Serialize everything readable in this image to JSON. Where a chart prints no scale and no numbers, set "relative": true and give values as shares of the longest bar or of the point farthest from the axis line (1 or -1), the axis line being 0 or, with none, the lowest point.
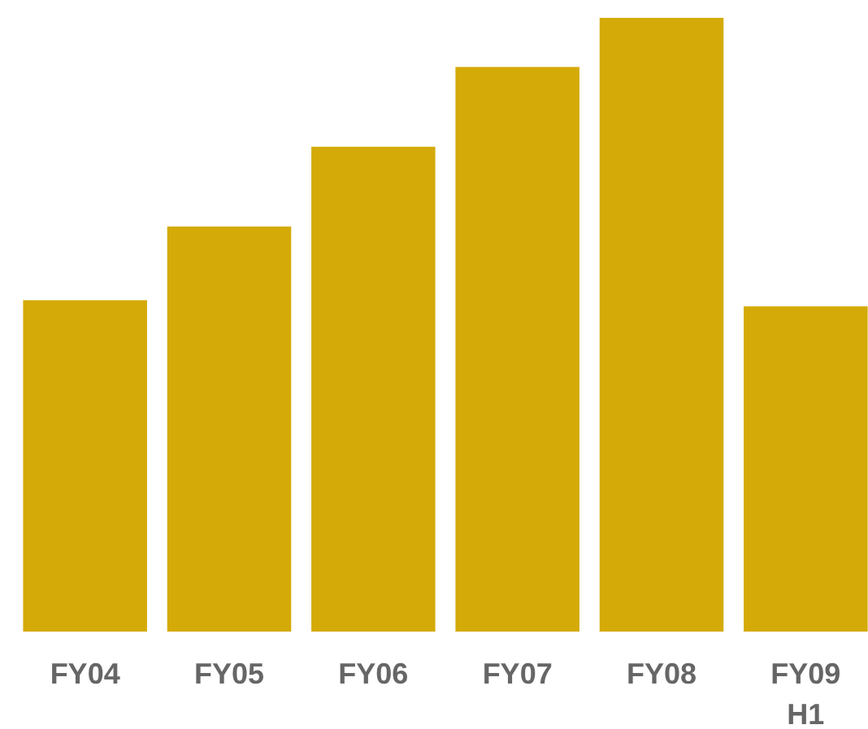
{
  "chart_data": {
    "type": "bar",
    "relative": true,
    "categories": [
      "FY04",
      "FY05",
      "FY06",
      "FY07",
      "FY08",
      "FY09 H1"
    ],
    "values": [
      0.54,
      0.66,
      0.79,
      0.92,
      1,
      0.53
    ],
    "color": "#d4aa08"
  }
}
